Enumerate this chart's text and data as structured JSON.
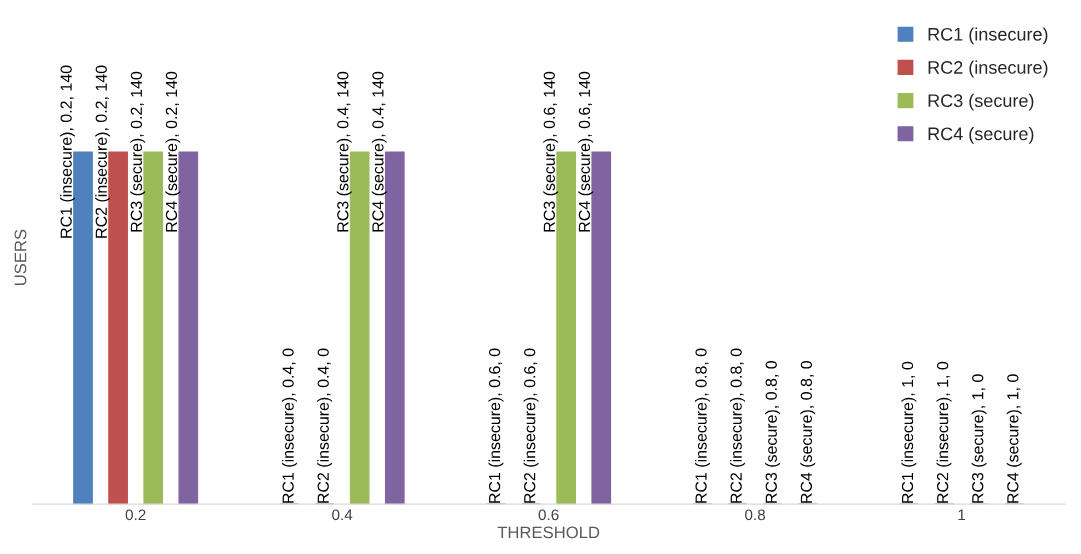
{
  "chart_data": {
    "type": "bar",
    "xlabel": "THRESHOLD",
    "ylabel": "USERS",
    "categories": [
      "0.2",
      "0.4",
      "0.6",
      "0.8",
      "1"
    ],
    "series": [
      {
        "name": "RC1 (insecure)",
        "color": "#4f81bd",
        "values": [
          140,
          0,
          0,
          0,
          0
        ],
        "value_labels": [
          "RC1 (insecure), 0.2, 140",
          "RC1 (insecure), 0.4, 0",
          "RC1 (insecure), 0.6, 0",
          "RC1 (insecure), 0.8, 0",
          "RC1 (insecure), 1, 0"
        ]
      },
      {
        "name": "RC2 (insecure)",
        "color": "#c0504d",
        "values": [
          140,
          0,
          0,
          0,
          0
        ],
        "value_labels": [
          "RC2 (insecure), 0.2, 140",
          "RC2 (insecure), 0.4, 0",
          "RC2 (insecure), 0.6, 0",
          "RC2 (insecure), 0.8, 0",
          "RC2 (insecure), 1, 0"
        ]
      },
      {
        "name": "RC3 (secure)",
        "color": "#9bbb59",
        "values": [
          140,
          140,
          140,
          0,
          0
        ],
        "value_labels": [
          "RC3 (secure), 0.2, 140",
          "RC3 (secure), 0.4, 140",
          "RC3 (secure), 0.6, 140",
          "RC3 (secure), 0.8, 0",
          "RC3 (secure), 1, 0"
        ]
      },
      {
        "name": "RC4 (secure)",
        "color": "#8064a2",
        "values": [
          140,
          140,
          140,
          0,
          0
        ],
        "value_labels": [
          "RC4 (secure), 0.2, 140",
          "RC4 (secure), 0.4, 140",
          "RC4 (secure), 0.6, 140",
          "RC4 (secure), 0.8, 0",
          "RC4 (secure), 1, 0"
        ]
      }
    ],
    "legend": "top right",
    "grid": false
  }
}
